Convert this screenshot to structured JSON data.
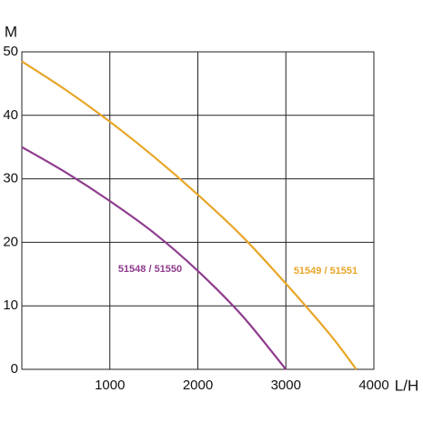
{
  "chart_data": {
    "type": "line",
    "y_label": "M",
    "x_label": "L/H",
    "x": [
      0,
      500,
      1000,
      1500,
      2000,
      2500,
      3000,
      3500,
      3800
    ],
    "series": [
      {
        "name": "51548 / 51550",
        "color": "#8e3b8e",
        "values": [
          35,
          31,
          26.5,
          21.5,
          15.5,
          8.5,
          0,
          null,
          null
        ]
      },
      {
        "name": "51549 / 51551",
        "color": "#e8a628",
        "values": [
          48.5,
          44,
          39,
          33.5,
          27.5,
          21,
          13.5,
          5.5,
          0
        ]
      }
    ],
    "xlim": [
      0,
      4000
    ],
    "xticks": [
      1000,
      2000,
      3000,
      4000
    ],
    "ylim": [
      0,
      50
    ],
    "yticks": [
      0,
      10,
      20,
      30,
      40,
      50
    ],
    "grid": true
  }
}
